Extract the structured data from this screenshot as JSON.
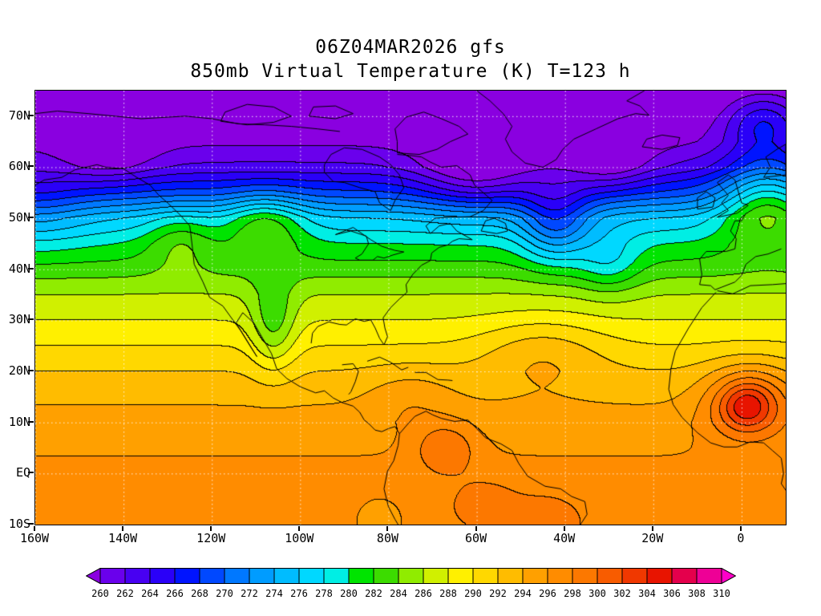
{
  "title": {
    "line1": "06Z04MAR2026 gfs",
    "line2": "850mb Virtual Temperature (K) T=123 h"
  },
  "chart_data": {
    "type": "heatmap",
    "title": "06Z04MAR2026 gfs",
    "subtitle": "850mb Virtual Temperature (K) T=123 h",
    "model": "gfs",
    "init_time": "06Z04MAR2026",
    "variable": "Virtual Temperature",
    "level": "850mb",
    "units": "K",
    "forecast_hour": 123,
    "lon_range": [
      -160,
      10
    ],
    "lat_range": [
      -10,
      75
    ],
    "x_ticks": [
      {
        "lon": -160,
        "label": "160W"
      },
      {
        "lon": -140,
        "label": "140W"
      },
      {
        "lon": -120,
        "label": "120W"
      },
      {
        "lon": -100,
        "label": "100W"
      },
      {
        "lon": -80,
        "label": "80W"
      },
      {
        "lon": -60,
        "label": "60W"
      },
      {
        "lon": -40,
        "label": "40W"
      },
      {
        "lon": -20,
        "label": "20W"
      },
      {
        "lon": 0,
        "label": "0"
      }
    ],
    "y_ticks": [
      {
        "lat": 70,
        "label": "70N"
      },
      {
        "lat": 60,
        "label": "60N"
      },
      {
        "lat": 50,
        "label": "50N"
      },
      {
        "lat": 40,
        "label": "40N"
      },
      {
        "lat": 30,
        "label": "30N"
      },
      {
        "lat": 20,
        "label": "20N"
      },
      {
        "lat": 10,
        "label": "10N"
      },
      {
        "lat": 0,
        "label": "EQ"
      },
      {
        "lat": -10,
        "label": "10S"
      }
    ],
    "grid": true,
    "grid_lon_step": 20,
    "grid_lat_step": 10,
    "contour_interval": 2,
    "levels": [
      260,
      262,
      264,
      266,
      268,
      270,
      272,
      274,
      276,
      278,
      280,
      282,
      284,
      286,
      288,
      290,
      292,
      294,
      296,
      298,
      300,
      302,
      304,
      306,
      308,
      310
    ],
    "fill_colors": [
      "#8A00E0",
      "#6A00EC",
      "#4800F2",
      "#2A00F8",
      "#0014FF",
      "#0048FF",
      "#0078FF",
      "#009CFF",
      "#00BCFF",
      "#00D8FF",
      "#00EEE4",
      "#00E400",
      "#3CDC00",
      "#90EC00",
      "#D0F000",
      "#FFF000",
      "#FFD800",
      "#FFBC00",
      "#FFA000",
      "#FF8C00",
      "#FC7800",
      "#F85C00",
      "#F03800",
      "#E81400",
      "#E4004C",
      "#EE0096",
      "#FF00C8"
    ],
    "legend_position": "bottom",
    "features": {
      "cold_pool": "below 260 K (purple) across Arctic latitudes 60N-75N",
      "trough": "cold trough from NE Canada into the central North Atlantic",
      "ridge": "warm ridge over the far eastern Atlantic / western Europe",
      "warm_max": "304-306 K maximum over West Africa near 0-10E, 10-18N",
      "secondary_warm_max": "298-302 K over northern South America"
    }
  },
  "colorbar": {
    "labels": [
      "260",
      "262",
      "264",
      "266",
      "268",
      "270",
      "272",
      "274",
      "276",
      "278",
      "280",
      "282",
      "284",
      "286",
      "288",
      "290",
      "292",
      "294",
      "296",
      "298",
      "300",
      "302",
      "304",
      "306",
      "308",
      "310"
    ]
  }
}
